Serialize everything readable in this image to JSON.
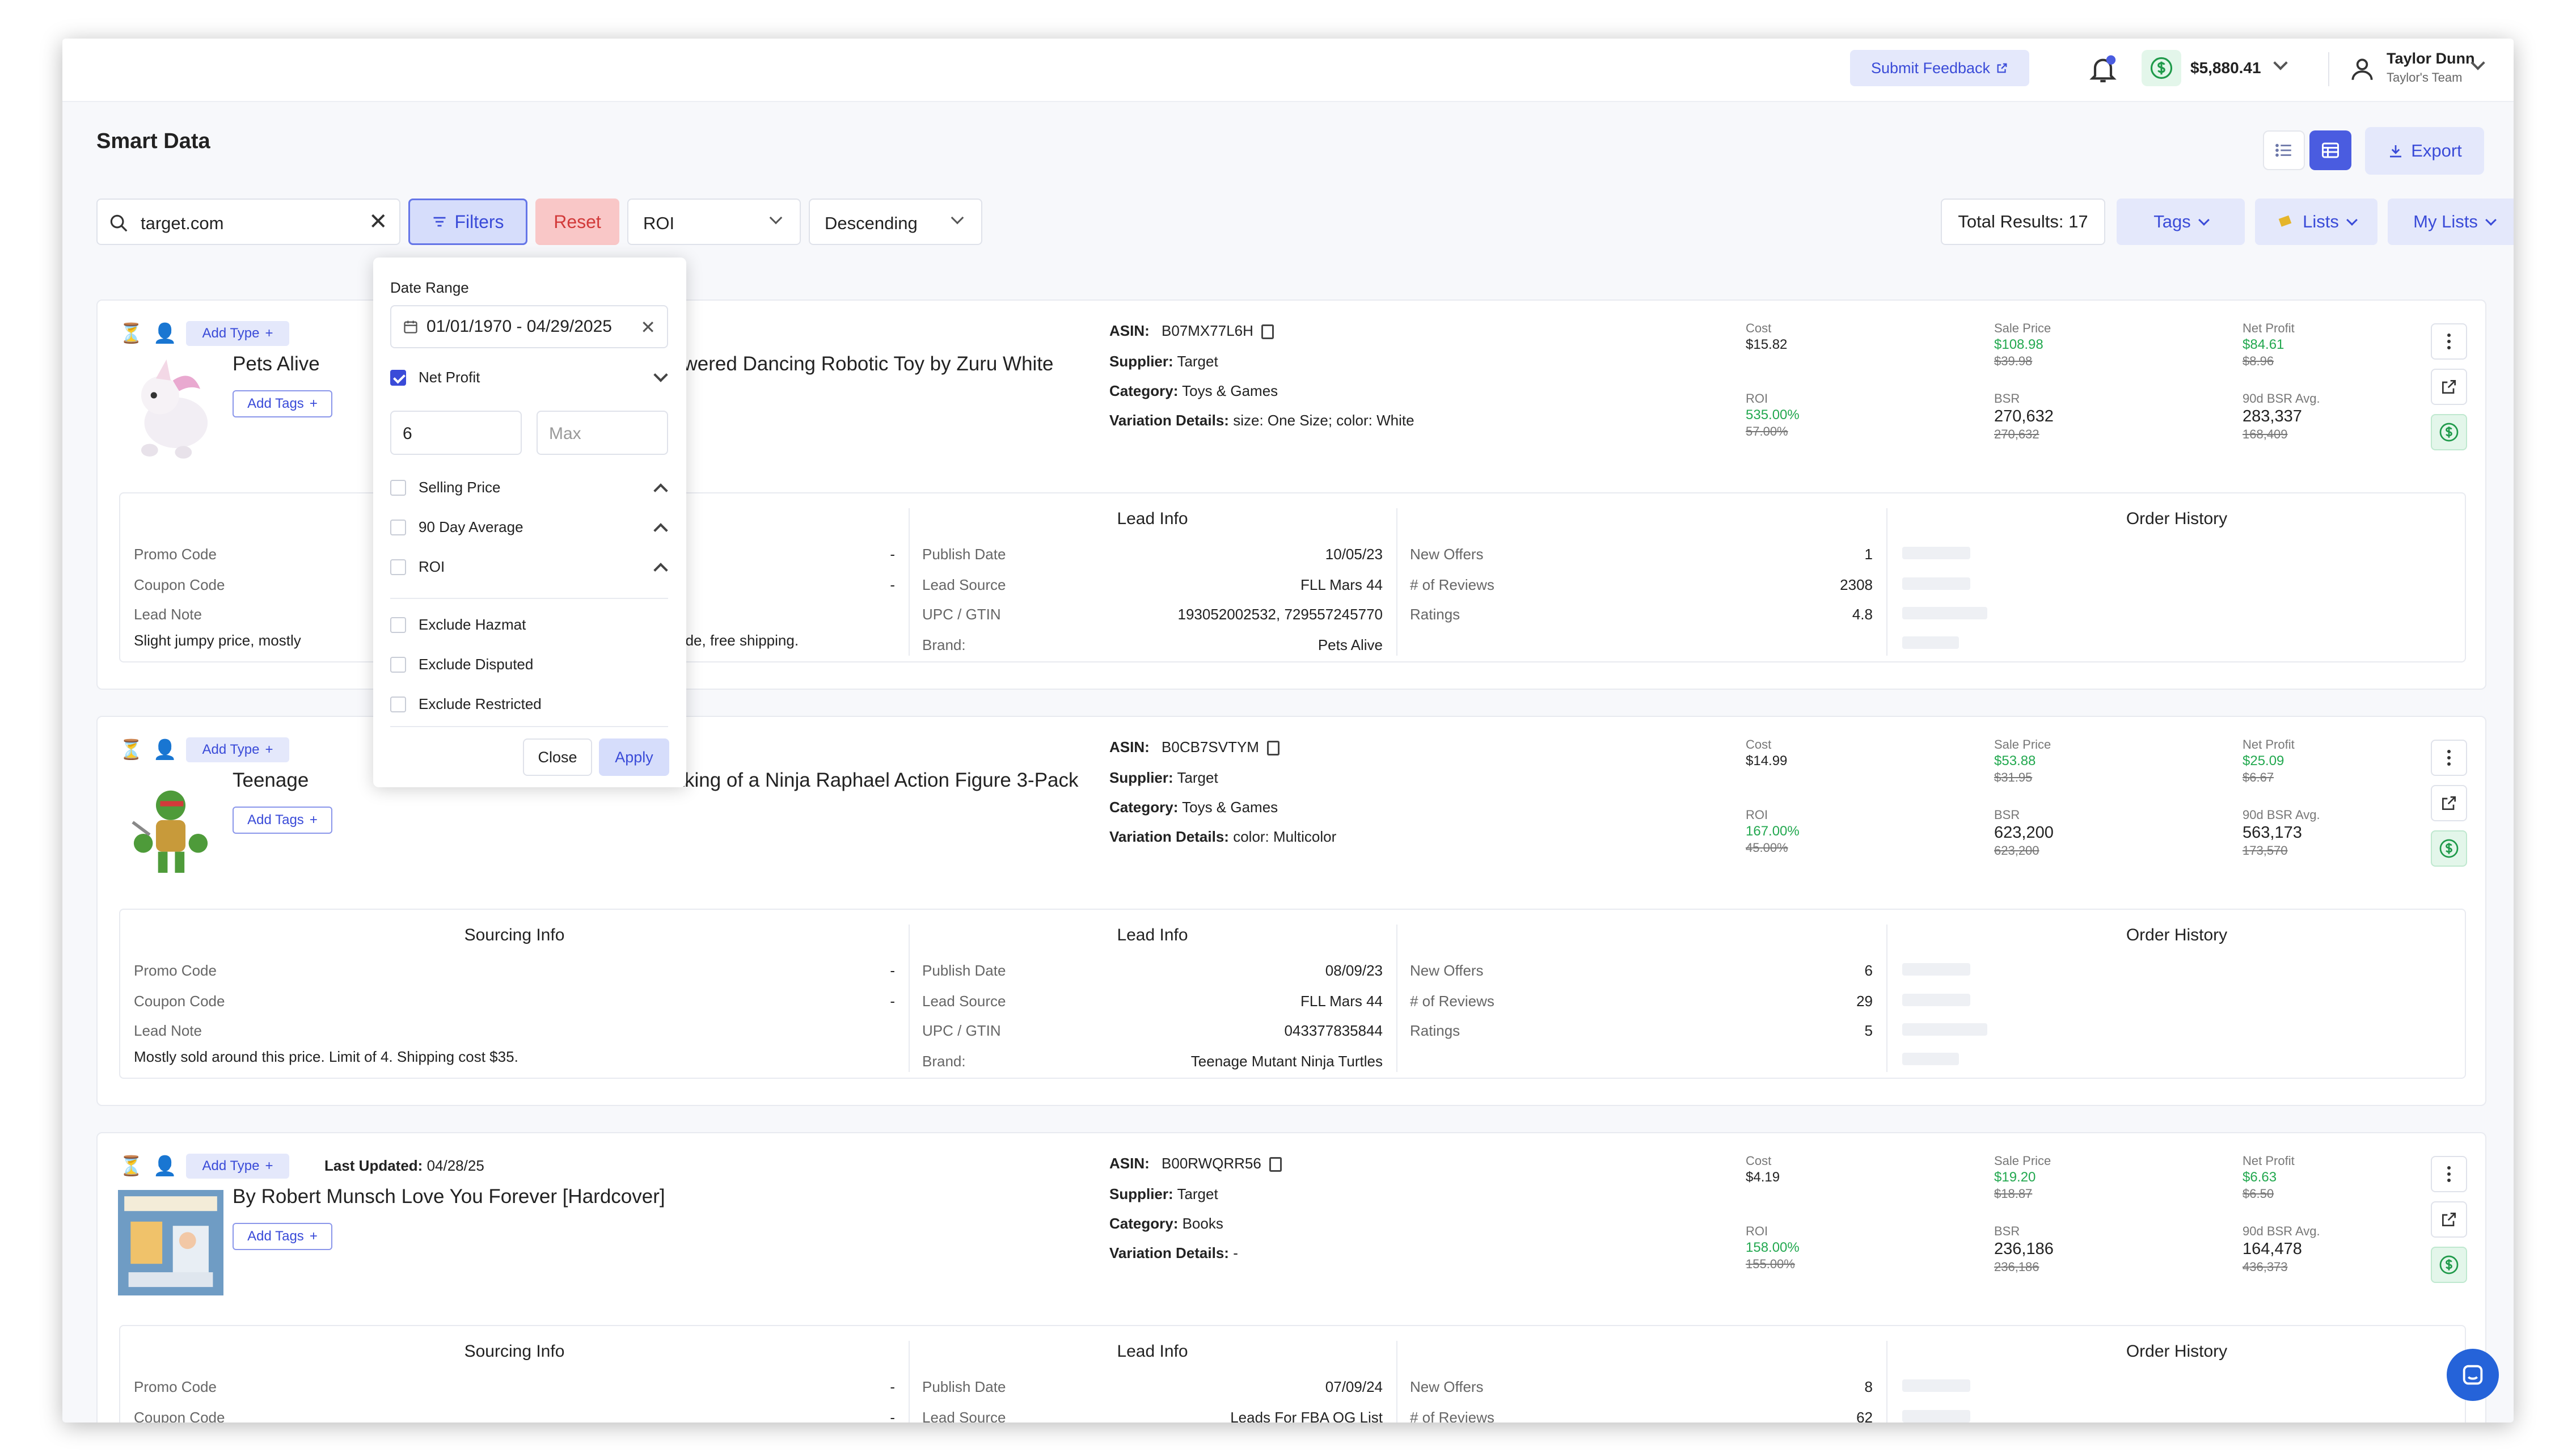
{
  "header": {
    "feedback_label": "Submit Feedback",
    "balance": "$5,880.41",
    "user_name": "Taylor Dunn",
    "user_team": "Taylor's Team"
  },
  "page": {
    "title": "Smart Data",
    "export_label": "Export"
  },
  "toolbar": {
    "search_value": "target.com",
    "filters_label": "Filters",
    "reset_label": "Reset",
    "sort_field": "ROI",
    "sort_order": "Descending",
    "total_results": "Total Results: 17",
    "tags_label": "Tags",
    "lists_label": "Lists",
    "my_lists_label": "My Lists"
  },
  "filter_panel": {
    "date_range_label": "Date Range",
    "date_range_value": "01/01/1970 - 04/29/2025",
    "net_profit_label": "Net Profit",
    "min_value": "6",
    "max_placeholder": "Max",
    "selling_price_label": "Selling Price",
    "avg90_label": "90 Day Average",
    "roi_label": "ROI",
    "exclude_hazmat": "Exclude Hazmat",
    "exclude_disputed": "Exclude Disputed",
    "exclude_restricted": "Exclude Restricted",
    "close_label": "Close",
    "apply_label": "Apply"
  },
  "labels": {
    "add_type": "Add Type",
    "add_tags": "Add Tags",
    "last_updated": "Last Updated:",
    "asin": "ASIN:",
    "supplier": "Supplier:",
    "category": "Category:",
    "variation": "Variation Details:",
    "cost": "Cost",
    "roi": "ROI",
    "sale_price": "Sale Price",
    "bsr": "BSR",
    "net_profit": "Net Profit",
    "bsr90": "90d BSR Avg.",
    "sourcing_info": "Sourcing Info",
    "lead_info": "Lead Info",
    "order_history": "Order History",
    "promo_code": "Promo Code",
    "coupon_code": "Coupon Code",
    "lead_note": "Lead Note",
    "publish_date": "Publish Date",
    "lead_source": "Lead Source",
    "upc": "UPC / GTIN",
    "brand": "Brand:",
    "new_offers": "New Offers",
    "reviews": "# of Reviews",
    "ratings": "Ratings"
  },
  "products": [
    {
      "title_left": "Pets Alive",
      "title_right": "ttery-Powered Dancing Robotic Toy by Zuru White",
      "asin": "B07MX77L6H",
      "supplier": "Target",
      "category": "Toys & Games",
      "variation": "size: One Size; color: White",
      "cost": "$15.82",
      "roi": "535.00%",
      "roi_old": "57.00%",
      "sale_price": "$108.98",
      "sale_price_old": "$39.98",
      "bsr": "270,632",
      "bsr_old": "270,632",
      "net_profit": "$84.61",
      "net_profit_old": "$8.96",
      "bsr90": "283,337",
      "bsr90_old": "168,409",
      "promo_code": "-",
      "coupon_code": "-",
      "lead_note_left": "Slight jumpy price, mostly",
      "lead_note_right": "off with code, free shipping.",
      "publish_date": "10/05/23",
      "lead_source": "FLL Mars 44",
      "upc": "193052002532, 729557245770",
      "brand": "Pets Alive",
      "new_offers": "1",
      "reviews": "2308",
      "ratings": "4.8"
    },
    {
      "title_left": "Teenage",
      "title_right": "em Making of a Ninja Raphael Action Figure 3-Pack",
      "asin": "B0CB7SVTYM",
      "supplier": "Target",
      "category": "Toys & Games",
      "variation": "color: Multicolor",
      "cost": "$14.99",
      "roi": "167.00%",
      "roi_old": "45.00%",
      "sale_price": "$53.88",
      "sale_price_old": "$31.95",
      "bsr": "623,200",
      "bsr_old": "623,200",
      "net_profit": "$25.09",
      "net_profit_old": "$6.67",
      "bsr90": "563,173",
      "bsr90_old": "173,570",
      "promo_code": "-",
      "coupon_code": "-",
      "lead_note": "Mostly sold around this price. Limit of 4. Shipping cost $35.",
      "publish_date": "08/09/23",
      "lead_source": "FLL Mars 44",
      "upc": "043377835844",
      "brand": "Teenage Mutant Ninja Turtles",
      "new_offers": "6",
      "reviews": "29",
      "ratings": "5"
    },
    {
      "last_updated": "04/28/25",
      "title": "By Robert Munsch Love You Forever [Hardcover]",
      "asin": "B00RWQRR56",
      "supplier": "Target",
      "category": "Books",
      "variation": "-",
      "cost": "$4.19",
      "roi": "158.00%",
      "roi_old": "155.00%",
      "sale_price": "$19.20",
      "sale_price_old": "$18.87",
      "bsr": "236,186",
      "bsr_old": "236,186",
      "net_profit": "$6.63",
      "net_profit_old": "$6.50",
      "bsr90": "164,478",
      "bsr90_old": "436,373",
      "promo_code": "-",
      "coupon_code": "-",
      "publish_date": "07/09/24",
      "lead_source": "Leads For FBA OG List",
      "new_offers": "8",
      "reviews": "62"
    }
  ]
}
